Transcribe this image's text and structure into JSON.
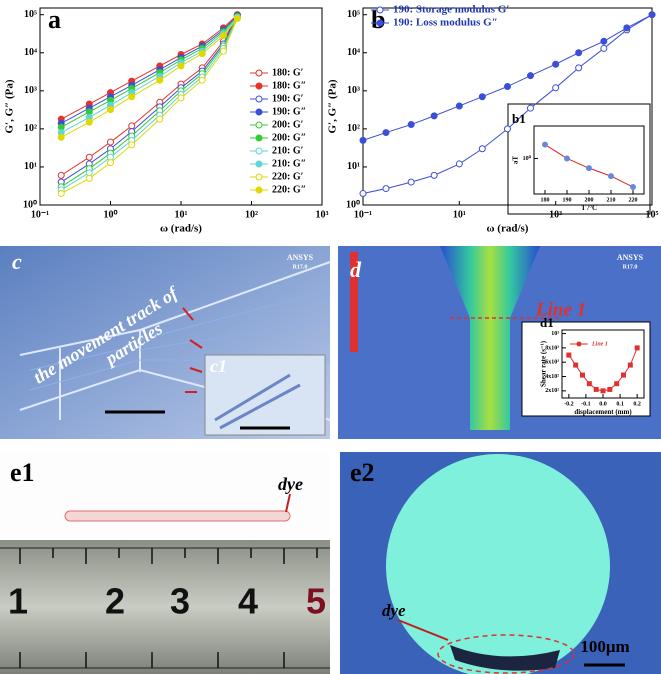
{
  "chart_data": [
    {
      "type": "line",
      "title": "a",
      "x_label": "ω (rad/s)",
      "y_label": "G′, G″ (Pa)",
      "xscale": "log",
      "yscale": "log",
      "legend": "lower right",
      "xlim": [
        0.1,
        1000
      ],
      "ylim": [
        1,
        150000
      ],
      "xticks": [
        {
          "value": 0.1,
          "label": "10⁻¹"
        },
        {
          "value": 1,
          "label": "10⁰"
        },
        {
          "value": 10,
          "label": "10¹"
        },
        {
          "value": 100,
          "label": "10²"
        },
        {
          "value": 1000,
          "label": "10³"
        }
      ],
      "yticks": [
        {
          "value": 1,
          "label": "10⁰"
        },
        {
          "value": 10,
          "label": "10¹"
        },
        {
          "value": 100,
          "label": "10²"
        },
        {
          "value": 1000,
          "label": "10³"
        },
        {
          "value": 10000,
          "label": "10⁴"
        },
        {
          "value": 100000,
          "label": "10⁵"
        }
      ],
      "x": [
        0.2,
        0.5,
        1,
        2,
        5,
        10,
        20,
        40,
        63
      ],
      "series": [
        {
          "name": "180: G′",
          "color": "#e8302a",
          "marker": "open",
          "values": [
            6,
            18,
            45,
            120,
            500,
            1500,
            4000,
            20000,
            100000
          ]
        },
        {
          "name": "180: G″",
          "color": "#e8302a",
          "marker": "filled",
          "values": [
            180,
            450,
            900,
            1800,
            4500,
            9000,
            17000,
            45000,
            100000
          ]
        },
        {
          "name": "190: G′",
          "color": "#3b4fd8",
          "marker": "open",
          "values": [
            4,
            12,
            30,
            85,
            380,
            1200,
            3300,
            17000,
            95000
          ]
        },
        {
          "name": "190: G″",
          "color": "#3b4fd8",
          "marker": "filled",
          "values": [
            140,
            350,
            700,
            1400,
            3600,
            7500,
            15000,
            40000,
            95000
          ]
        },
        {
          "name": "200: G′",
          "color": "#33cc33",
          "marker": "open",
          "values": [
            3,
            9,
            23,
            65,
            300,
            1000,
            2800,
            15000,
            90000
          ]
        },
        {
          "name": "200: G″",
          "color": "#33cc33",
          "marker": "filled",
          "values": [
            110,
            280,
            560,
            1150,
            3000,
            6500,
            13000,
            36000,
            90000
          ]
        },
        {
          "name": "210: G′",
          "color": "#5fd6d6",
          "marker": "open",
          "values": [
            2.5,
            7,
            18,
            50,
            230,
            800,
            2300,
            13000,
            85000
          ]
        },
        {
          "name": "210: G″",
          "color": "#5fd6d6",
          "marker": "filled",
          "values": [
            80,
            200,
            420,
            900,
            2400,
            5500,
            11000,
            32000,
            85000
          ]
        },
        {
          "name": "220: G′",
          "color": "#e0d800",
          "marker": "open",
          "values": [
            2,
            5,
            13,
            38,
            180,
            650,
            1900,
            11000,
            80000
          ]
        },
        {
          "name": "220: G″",
          "color": "#e0d800",
          "marker": "filled",
          "values": [
            60,
            150,
            320,
            700,
            1900,
            4500,
            9500,
            28000,
            80000
          ]
        }
      ]
    },
    {
      "type": "line",
      "title": "b",
      "x_label": "ω (rad/s)",
      "y_label": "G′, G″ (Pa)",
      "xscale": "log",
      "yscale": "log",
      "legend": "upper left",
      "xlim": [
        0.1,
        100000
      ],
      "ylim": [
        1,
        150000
      ],
      "xticks": [
        {
          "value": 0.1,
          "label": "10⁻¹"
        },
        {
          "value": 10,
          "label": "10¹"
        },
        {
          "value": 1000,
          "label": "10³"
        },
        {
          "value": 100000,
          "label": "10⁵"
        }
      ],
      "yticks": [
        {
          "value": 1,
          "label": "10⁰"
        },
        {
          "value": 10,
          "label": "10¹"
        },
        {
          "value": 100,
          "label": "10²"
        },
        {
          "value": 1000,
          "label": "10³"
        },
        {
          "value": 10000,
          "label": "10⁴"
        },
        {
          "value": 100000,
          "label": "10⁵"
        }
      ],
      "x": [
        0.1,
        0.3,
        1,
        3,
        10,
        30,
        100,
        300,
        1000,
        3000,
        10000,
        30000,
        100000
      ],
      "series": [
        {
          "name": "190: Storage modulus G′",
          "color": "#3b4fd8",
          "marker": "open",
          "values": [
            2,
            2.7,
            4,
            6,
            12,
            30,
            100,
            350,
            1200,
            4000,
            13000,
            40000,
            100000
          ]
        },
        {
          "name": "190: Loss modulus G″",
          "color": "#3b4fd8",
          "marker": "filled",
          "values": [
            50,
            80,
            130,
            220,
            400,
            700,
            1300,
            2500,
            5000,
            10000,
            20000,
            45000,
            100000
          ]
        }
      ]
    },
    {
      "type": "line",
      "title": "b1",
      "x_label": "T /°C",
      "y_label": "aT",
      "xscale": "linear",
      "yscale": "log",
      "xlim": [
        175,
        225
      ],
      "ylim": [
        0.3,
        3
      ],
      "xticks": [
        180,
        190,
        200,
        210,
        220
      ],
      "yticks": [
        {
          "value": 1,
          "label": "10⁰"
        }
      ],
      "x": [
        180,
        190,
        200,
        210,
        220
      ],
      "series": [
        {
          "color": "#6688dd",
          "line_color": "#dd2222",
          "marker": "filled",
          "values": [
            1.6,
            1,
            0.72,
            0.55,
            0.38
          ]
        }
      ]
    },
    {
      "type": "line",
      "title": "d1",
      "x_label": "displacement (mm)",
      "y_label": "Shear rate (s⁻¹)",
      "xscale": "linear",
      "yscale": "linear",
      "legend": "upper left",
      "xlim": [
        -0.24,
        0.24
      ],
      "ylim": [
        100,
        1050
      ],
      "xticks": [
        -0.2,
        -0.1,
        {
          "value": 0,
          "label": "0.0"
        },
        0.1,
        0.2
      ],
      "yticks": [
        {
          "value": 200,
          "label": "2x10²"
        },
        {
          "value": 400,
          "label": "4x10²"
        },
        {
          "value": 600,
          "label": "6x10²"
        },
        {
          "value": 800,
          "label": "8x10²"
        },
        {
          "value": 1000,
          "label": "10³"
        }
      ],
      "x": [
        -0.2,
        -0.16,
        -0.12,
        -0.08,
        -0.04,
        0,
        0.04,
        0.08,
        0.12,
        0.16,
        0.2
      ],
      "series": [
        {
          "name": "Line 1",
          "color": "#e03030",
          "marker": "square",
          "values": [
            700,
            560,
            420,
            300,
            220,
            200,
            220,
            300,
            420,
            560,
            800
          ]
        }
      ]
    }
  ],
  "panels": {
    "c": {
      "label": "c",
      "annotation": [
        "the movement track of",
        "particles"
      ],
      "software": "ANSYS",
      "version": "R17.0",
      "inset_label": "c1"
    },
    "d": {
      "label": "d",
      "software": "ANSYS",
      "version": "R17.0",
      "line_label": "Line 1"
    },
    "e1": {
      "label": "e1",
      "dye": "dye",
      "ruler": [
        "1",
        "2",
        "3",
        "4",
        "5"
      ]
    },
    "e2": {
      "label": "e2",
      "dye": "dye",
      "scale_bar": "100μm"
    }
  }
}
